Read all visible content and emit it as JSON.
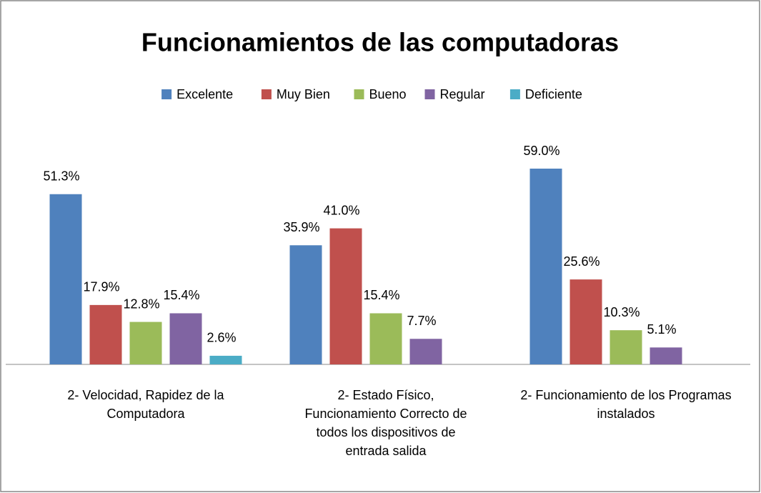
{
  "chart_data": {
    "type": "bar",
    "title": "Funcionamientos de las computadoras",
    "categories": [
      "2- Velocidad, Rapidez de la Computadora",
      "2- Estado Físico, Funcionamiento Correcto de todos los dispositivos de entrada salida",
      "2- Funcionamiento de los Programas instalados"
    ],
    "series": [
      {
        "name": "Excelente",
        "color": "#4f81bd",
        "values": [
          51.3,
          35.9,
          59.0
        ],
        "value_labels": [
          "51.3%",
          "35.9%",
          "59.0%"
        ]
      },
      {
        "name": "Muy Bien",
        "color": "#c0504d",
        "values": [
          17.9,
          41.0,
          25.6
        ],
        "value_labels": [
          "17.9%",
          "41.0%",
          "25.6%"
        ]
      },
      {
        "name": "Bueno",
        "color": "#9bbb59",
        "values": [
          12.8,
          15.4,
          10.3
        ],
        "value_labels": [
          "12.8%",
          "15.4%",
          "10.3%"
        ]
      },
      {
        "name": "Regular",
        "color": "#8064a2",
        "values": [
          15.4,
          7.7,
          5.1
        ],
        "value_labels": [
          "15.4%",
          "7.7%",
          "5.1%"
        ]
      },
      {
        "name": "Deficiente",
        "color": "#4bacc6",
        "values": [
          2.6,
          null,
          null
        ],
        "value_labels": [
          "2.6%",
          null,
          null
        ]
      }
    ],
    "legend": "top"
  }
}
